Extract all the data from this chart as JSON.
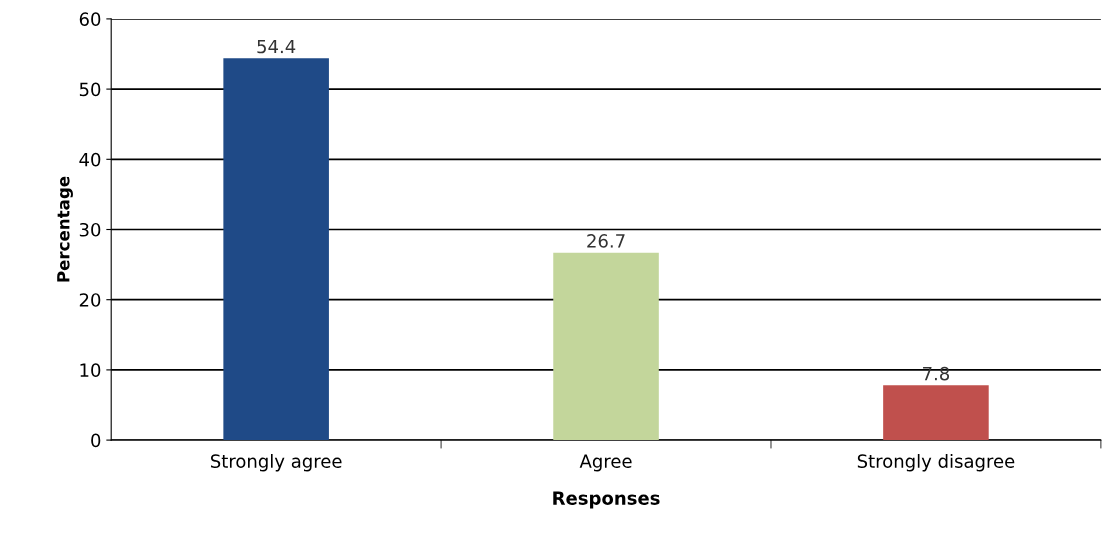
{
  "chart_data": {
    "type": "bar",
    "xlabel": "Responses",
    "ylabel": "Percentage",
    "categories": [
      "Strongly agree",
      "Agree",
      "Strongly disagree"
    ],
    "values": [
      54.4,
      26.7,
      7.8
    ],
    "colors": [
      "#1f4a87",
      "#c3d69b",
      "#c0504d"
    ],
    "ylim": [
      0,
      60
    ],
    "yticks": [
      0,
      10,
      20,
      30,
      40,
      50,
      60
    ],
    "grid": "y",
    "data_labels": true
  }
}
